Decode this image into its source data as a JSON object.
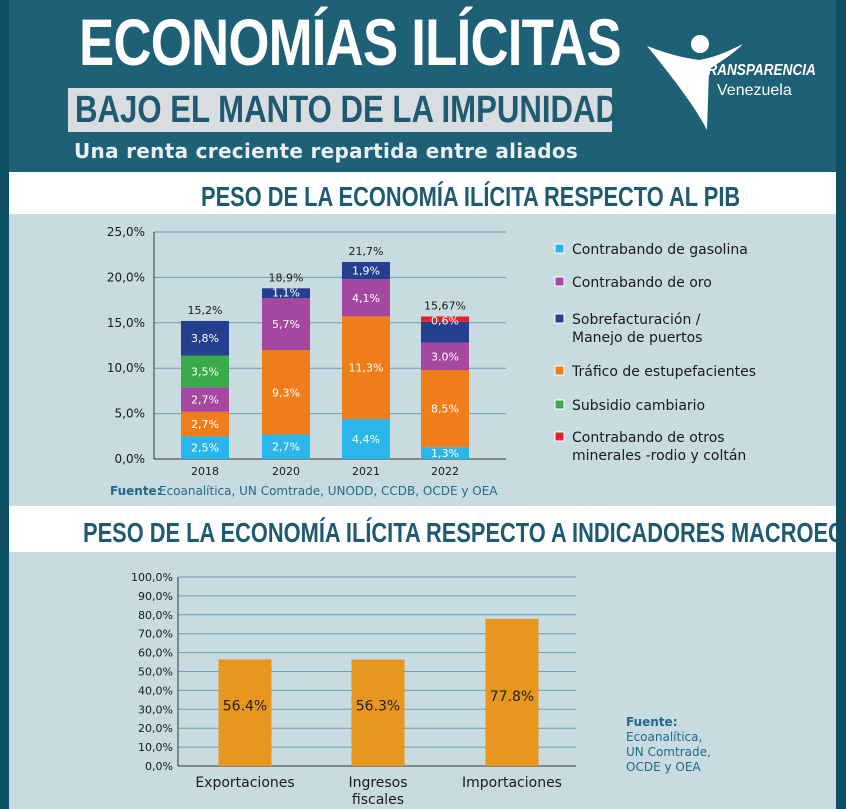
{
  "header": {
    "title": "ECONOMÍAS ILÍCITAS",
    "subtitle": "BAJO EL MANTO DE LA IMPUNIDAD",
    "tagline": "Una renta creciente repartida entre aliados",
    "logo_line1": "TRANSPARENCIA",
    "logo_line2": "Venezuela"
  },
  "section1": {
    "title": "PESO DE LA ECONOMÍA ILÍCITA RESPECTO AL PIB",
    "source_label": "Fuente:",
    "source_text": "Ecoanalítica, UN Comtrade, UNODD, CCDB, OCDE y OEA"
  },
  "section2": {
    "title": "PESO DE LA ECONOMÍA ILÍCITA RESPECTO A INDICADORES MACROECONÓMICOS",
    "source_label": "Fuente:",
    "source_lines": [
      "Ecoanalítica,",
      "UN Comtrade,",
      "OCDE y OEA"
    ]
  },
  "chart_data": [
    {
      "type": "bar",
      "stacked": true,
      "categories": [
        "2018",
        "2020",
        "2021",
        "2022"
      ],
      "ylim": [
        0,
        25
      ],
      "yticks": [
        "0,0%",
        "5,0%",
        "10,0%",
        "15,0%",
        "20,0%",
        "25,0%"
      ],
      "totals": [
        "15,2%",
        "18,9%",
        "21,7%",
        "15,67%"
      ],
      "legend_position": "right",
      "series": [
        {
          "name": "Contrabando de gasolina",
          "color": "#2bb6ea",
          "values": [
            2.5,
            2.7,
            4.4,
            1.3
          ],
          "labels": [
            "2,5%",
            "2,7%",
            "4,4%",
            "1,3%"
          ]
        },
        {
          "name": "Tráfico de estupefacientes",
          "color": "#ef7d1a",
          "values": [
            2.7,
            9.3,
            11.3,
            8.5
          ],
          "labels": [
            "2,7%",
            "9,3%",
            "11,3%",
            "8,5%"
          ]
        },
        {
          "name": "Contrabando de oro",
          "color": "#a648a0",
          "values": [
            2.7,
            5.7,
            4.1,
            3.0
          ],
          "labels": [
            "2,7%",
            "5,7%",
            "4,1%",
            "3.0%"
          ]
        },
        {
          "name": "Subsidio cambiario",
          "color": "#3aab4a",
          "values": [
            3.5,
            0,
            0,
            0
          ],
          "labels": [
            "3,5%",
            "",
            "",
            ""
          ]
        },
        {
          "name": "Sobrefacturación / Manejo de puertos",
          "color": "#233f8e",
          "values": [
            3.8,
            1.1,
            1.9,
            2.3
          ],
          "labels": [
            "3,8%",
            "1,1%",
            "1,9%",
            ""
          ]
        },
        {
          "name": "Contrabando de otros minerales -rodio y coltán",
          "color": "#e0242b",
          "values": [
            0,
            0,
            0,
            0.6
          ],
          "labels": [
            "",
            "",
            "",
            "0,6%"
          ]
        }
      ],
      "legend": [
        {
          "lines": [
            "Contrabando de gasolina"
          ],
          "color": "#2bb6ea"
        },
        {
          "lines": [
            "Contrabando de oro"
          ],
          "color": "#a648a0"
        },
        {
          "lines": [
            "Sobrefacturación /",
            "Manejo de puertos"
          ],
          "color": "#233f8e"
        },
        {
          "lines": [
            "Tráfico de estupefacientes"
          ],
          "color": "#ef7d1a"
        },
        {
          "lines": [
            "Subsidio cambiario"
          ],
          "color": "#3aab4a"
        },
        {
          "lines": [
            "Contrabando de otros",
            "minerales -rodio y coltán"
          ],
          "color": "#e0242b"
        }
      ]
    },
    {
      "type": "bar",
      "categories": [
        [
          "Exportaciones"
        ],
        [
          "Ingresos",
          "fiscales"
        ],
        [
          "Importaciones"
        ]
      ],
      "values": [
        56.4,
        56.3,
        77.8
      ],
      "labels": [
        "56.4%",
        "56.3%",
        "77.8%"
      ],
      "ylim": [
        0,
        100
      ],
      "yticks": [
        "0,0%",
        "10,0%",
        "20,0%",
        "30,0%",
        "40,0%",
        "50,0%",
        "60,0%",
        "70,0%",
        "80,0%",
        "90,0%",
        "100,0%"
      ],
      "color": "#e8961e"
    }
  ]
}
